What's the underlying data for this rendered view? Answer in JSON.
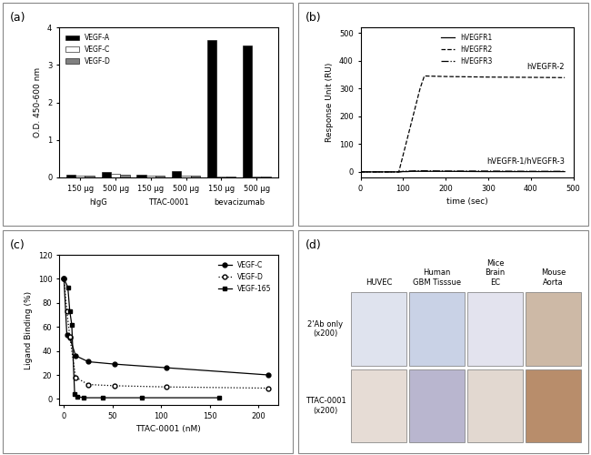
{
  "chart_data": [
    {
      "type": "bar",
      "title": "(a)",
      "y_label": "O.D. 450-600 nm",
      "categories": [
        "150 μg",
        "500 μg",
        "150 μg",
        "500 μg",
        "150 μg",
        "500 μg"
      ],
      "groups": [
        "hIgG",
        "TTAC-0001",
        "bevacizumab"
      ],
      "series": [
        {
          "name": "VEGF-A",
          "color": "#000000",
          "values": [
            0.08,
            0.15,
            0.07,
            0.16,
            3.65,
            3.52
          ]
        },
        {
          "name": "VEGF-C",
          "color": "#ffffff",
          "values": [
            0.05,
            0.09,
            0.04,
            0.05,
            0.03,
            0.03
          ]
        },
        {
          "name": "VEGF-D",
          "color": "#808080",
          "values": [
            0.06,
            0.08,
            0.06,
            0.05,
            0.03,
            0.03
          ]
        }
      ],
      "ylim": [
        0,
        4
      ],
      "yticks": [
        0,
        1,
        2,
        3,
        4
      ],
      "legend": "upper left",
      "grid": false
    },
    {
      "type": "line",
      "title": "(b)",
      "x_label": "time (sec)",
      "y_label": "Response Unit (RU)",
      "series": [
        {
          "name": "hVEGFR1",
          "color": "#000000",
          "line_style": "solid",
          "x": [
            0,
            90,
            100,
            110,
            120,
            130,
            140,
            150,
            200,
            300,
            400,
            480
          ],
          "values": [
            0,
            0,
            1,
            1,
            2,
            2,
            2,
            2,
            2,
            1,
            1,
            1
          ]
        },
        {
          "name": "hVEGFR2",
          "color": "#000000",
          "line_style": "dashed",
          "x": [
            0,
            90,
            100,
            110,
            120,
            130,
            140,
            150,
            200,
            300,
            400,
            480
          ],
          "values": [
            0,
            0,
            60,
            120,
            180,
            240,
            300,
            345,
            343,
            341,
            340,
            339
          ]
        },
        {
          "name": "hVEGFR3",
          "color": "#000000",
          "line_style": "dashdot",
          "x": [
            0,
            90,
            100,
            110,
            120,
            130,
            140,
            150,
            200,
            300,
            400,
            480
          ],
          "values": [
            0,
            0,
            2,
            3,
            3,
            4,
            4,
            4,
            3,
            3,
            2,
            2
          ]
        }
      ],
      "annotations": [
        {
          "text": "hVEGFR-2",
          "series": "hVEGFR2"
        },
        {
          "text": "hVEGFR-1/hVEGFR-3",
          "series": "hVEGFR1"
        }
      ],
      "xlim": [
        0,
        500
      ],
      "xticks": [
        0,
        100,
        200,
        300,
        400,
        500
      ],
      "ylim": [
        -20,
        520
      ],
      "yticks": [
        0,
        100,
        200,
        300,
        400,
        500
      ],
      "legend": "upper center",
      "grid": false
    },
    {
      "type": "line",
      "title": "(c)",
      "x_label": "TTAC-0001 (nM)",
      "y_label": "Ligand Binding (%)",
      "series": [
        {
          "name": "VEGF-C",
          "color": "#000000",
          "line_style": "solid",
          "marker": "circle",
          "x": [
            0,
            3,
            6,
            12,
            25,
            52,
            105,
            210
          ],
          "values": [
            100,
            53,
            51,
            36,
            31,
            29,
            26,
            20
          ]
        },
        {
          "name": "VEGF-D",
          "color": "#000000",
          "line_style": "dotted",
          "marker": "open_circle",
          "x": [
            0,
            3,
            6,
            12,
            25,
            52,
            105,
            210
          ],
          "values": [
            100,
            73,
            52,
            18,
            12,
            11,
            10,
            9
          ]
        },
        {
          "name": "VEGF-165",
          "color": "#000000",
          "line_style": "solid",
          "marker": "square",
          "x": [
            0,
            4,
            6,
            8,
            11,
            14,
            20,
            40,
            80,
            160
          ],
          "values": [
            100,
            93,
            73,
            62,
            4,
            2,
            1,
            1,
            1,
            1
          ]
        }
      ],
      "xlim": [
        -5,
        220
      ],
      "xticks": [
        0,
        50,
        100,
        150,
        200
      ],
      "ylim": [
        -5,
        120
      ],
      "yticks": [
        0,
        20,
        40,
        60,
        80,
        100,
        120
      ],
      "legend": "upper right",
      "grid": false
    }
  ],
  "image_grid": {
    "title": "(d)",
    "columns": [
      "HUVEC",
      "Human\nGBM Tisssue",
      "Mice\nBrain\nEC",
      "Mouse\nAorta"
    ],
    "rows": [
      "2'Ab only\n(x200)",
      "TTAC-0001\n(x200)"
    ]
  }
}
